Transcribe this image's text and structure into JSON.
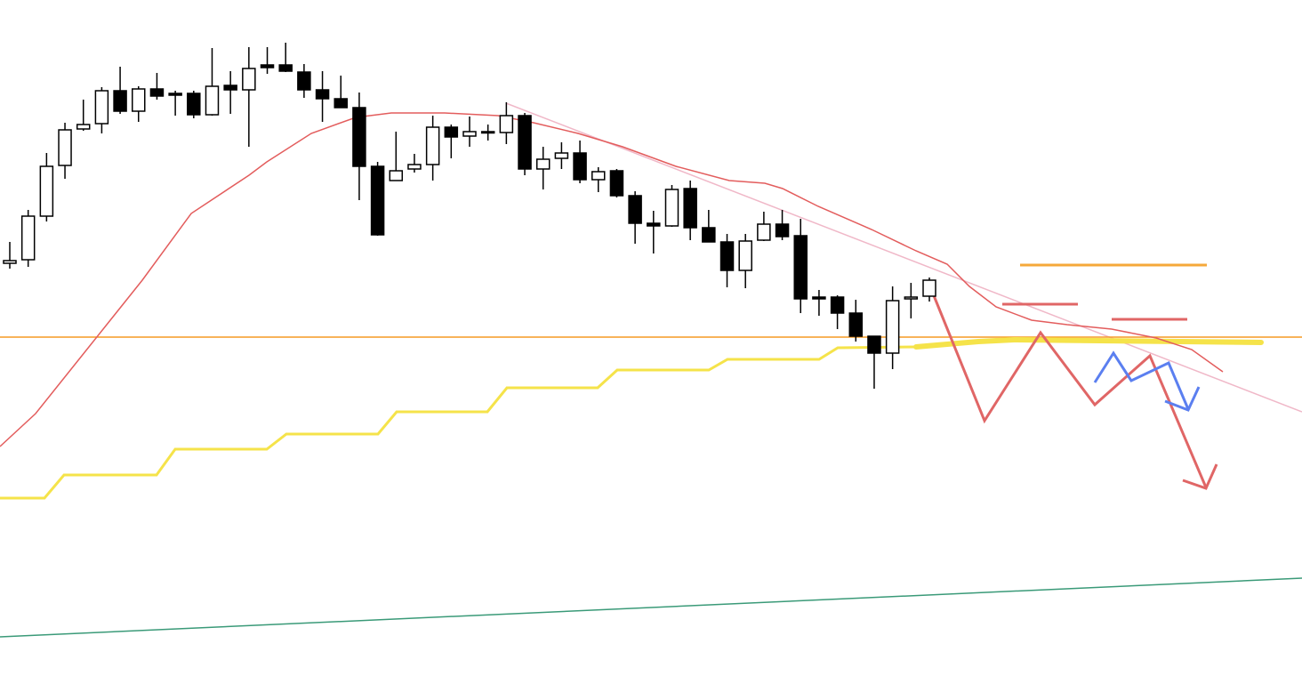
{
  "chart_data": {
    "type": "candlestick",
    "ylim": [
      0,
      778
    ],
    "up_color": "#ffffff",
    "down_color": "#000000",
    "edge_color": "#000000",
    "open": [
      482,
      486,
      535,
      592,
      633,
      639,
      676,
      653,
      678,
      673,
      673,
      649,
      682,
      677,
      705,
      705,
      697,
      677,
      667,
      657,
      591,
      575,
      588,
      593,
      635,
      625,
      629,
      629,
      648,
      588,
      600,
      606,
      576,
      586,
      558,
      527,
      524,
      566,
      522,
      506,
      474,
      508,
      526,
      513,
      444,
      444,
      426,
      400,
      381,
      442,
      445
    ],
    "high": [
      506,
      542,
      606,
      640,
      666,
      680,
      703,
      681,
      696,
      676,
      676,
      724,
      698,
      725,
      725,
      730,
      706,
      698,
      693,
      674,
      596,
      630,
      605,
      648,
      638,
      647,
      638,
      663,
      651,
      613,
      618,
      620,
      590,
      588,
      563,
      541,
      570,
      575,
      542,
      515,
      515,
      540,
      542,
      532,
      452,
      446,
      441,
      400,
      456,
      460,
      466
    ],
    "low": [
      476,
      478,
      529,
      577,
      631,
      628,
      650,
      641,
      666,
      648,
      645,
      648,
      650,
      613,
      695,
      697,
      668,
      641,
      657,
      553,
      513,
      575,
      584,
      575,
      600,
      613,
      620,
      616,
      581,
      565,
      588,
      572,
      562,
      556,
      504,
      493,
      523,
      508,
      506,
      455,
      454,
      507,
      508,
      426,
      423,
      408,
      394,
      341,
      363,
      420,
      439
    ],
    "close": [
      485,
      535,
      591,
      632,
      638,
      676,
      653,
      678,
      670,
      671,
      649,
      681,
      677,
      701,
      702,
      698,
      677,
      667,
      657,
      591,
      514,
      586,
      593,
      635,
      624,
      630,
      630,
      648,
      588,
      599,
      606,
      576,
      585,
      558,
      527,
      524,
      565,
      522,
      506,
      474,
      507,
      526,
      512,
      442,
      442,
      426,
      400,
      381,
      440,
      444,
      463
    ]
  }
}
